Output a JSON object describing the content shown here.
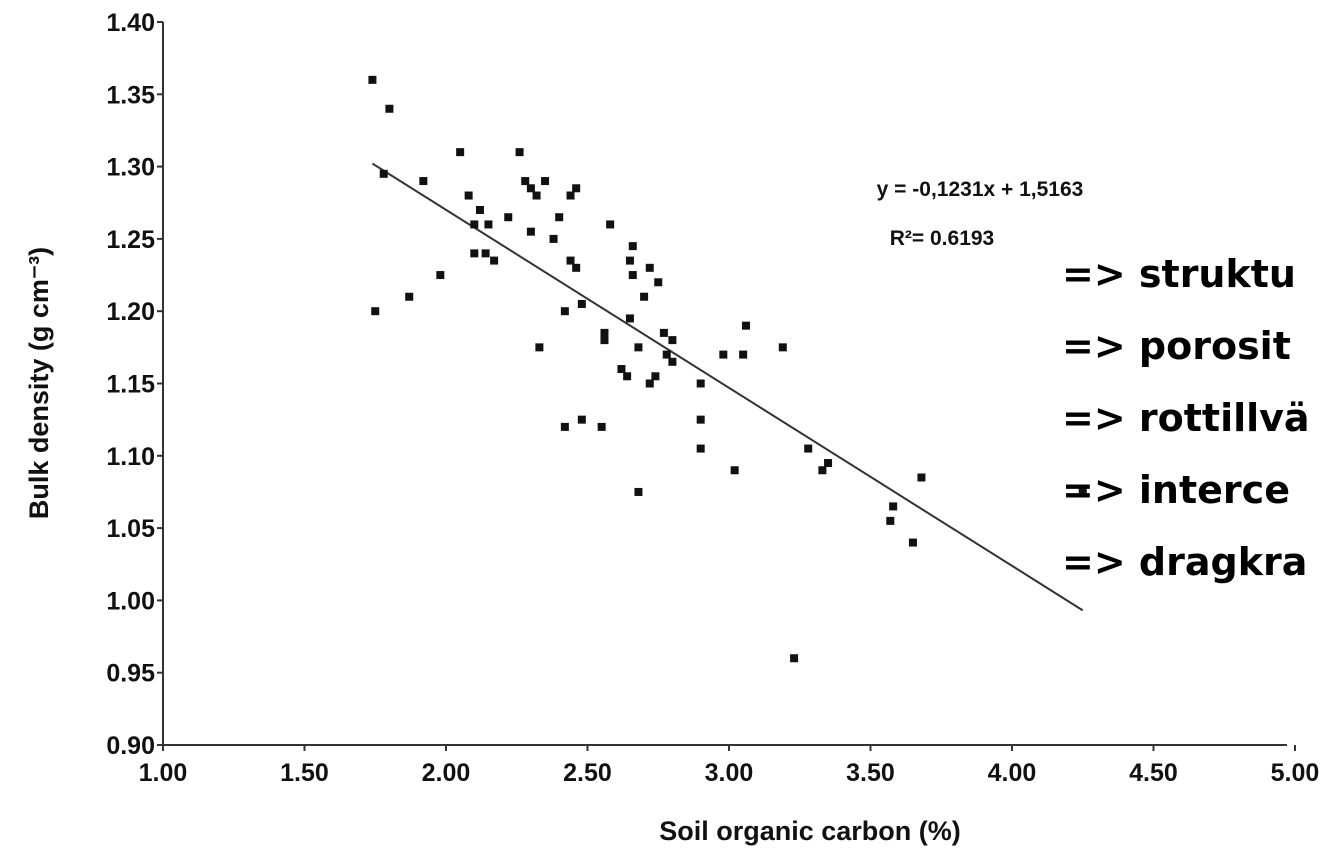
{
  "chart_data": {
    "type": "scatter",
    "x_label": "Soil organic carbon (%)",
    "y_label": "Bulk density (g cm⁻³)",
    "xlim": [
      1,
      5
    ],
    "ylim": [
      0.9,
      1.4
    ],
    "xticks": [
      {
        "value": 1,
        "label": "1.00"
      },
      {
        "value": 1.5,
        "label": "1.50"
      },
      {
        "value": 2,
        "label": "2.00"
      },
      {
        "value": 2.5,
        "label": "2.50"
      },
      {
        "value": 3,
        "label": "3.00"
      },
      {
        "value": 3.5,
        "label": "3.50"
      },
      {
        "value": 4,
        "label": "4.00"
      },
      {
        "value": 4.5,
        "label": "4.50"
      },
      {
        "value": 5,
        "label": "5.00"
      }
    ],
    "yticks": [
      {
        "value": 0.9,
        "label": "0.90"
      },
      {
        "value": 0.95,
        "label": "0.95"
      },
      {
        "value": 1,
        "label": "1.00"
      },
      {
        "value": 1.05,
        "label": "1.05"
      },
      {
        "value": 1.1,
        "label": "1.10"
      },
      {
        "value": 1.15,
        "label": "1.15"
      },
      {
        "value": 1.2,
        "label": "1.20"
      },
      {
        "value": 1.25,
        "label": "1.25"
      },
      {
        "value": 1.3,
        "label": "1.30"
      },
      {
        "value": 1.35,
        "label": "1.35"
      },
      {
        "value": 1.4,
        "label": "1.40"
      }
    ],
    "color": "#111111",
    "x": [
      1.74,
      1.8,
      1.78,
      1.75,
      1.87,
      1.92,
      1.98,
      2.05,
      2.08,
      2.1,
      2.12,
      2.1,
      2.14,
      2.15,
      2.17,
      2.22,
      2.26,
      2.28,
      2.3,
      2.32,
      2.35,
      2.3,
      2.38,
      2.4,
      2.44,
      2.46,
      2.44,
      2.46,
      2.42,
      2.33,
      2.48,
      2.56,
      2.56,
      2.58,
      2.42,
      2.48,
      2.55,
      2.62,
      2.64,
      2.65,
      2.66,
      2.66,
      2.65,
      2.68,
      2.7,
      2.72,
      2.74,
      2.72,
      2.75,
      2.77,
      2.8,
      2.78,
      2.8,
      2.68,
      2.9,
      2.9,
      2.9,
      2.98,
      3.05,
      3.06,
      3.02,
      3.19,
      3.28,
      3.33,
      3.35,
      3.57,
      3.58,
      3.65,
      3.68,
      3.23,
      4.25
    ],
    "values": [
      1.36,
      1.34,
      1.295,
      1.2,
      1.21,
      1.29,
      1.225,
      1.31,
      1.28,
      1.26,
      1.27,
      1.24,
      1.24,
      1.26,
      1.235,
      1.265,
      1.31,
      1.29,
      1.285,
      1.28,
      1.29,
      1.255,
      1.25,
      1.265,
      1.28,
      1.285,
      1.235,
      1.23,
      1.2,
      1.175,
      1.205,
      1.18,
      1.185,
      1.26,
      1.12,
      1.125,
      1.12,
      1.16,
      1.155,
      1.235,
      1.245,
      1.225,
      1.195,
      1.175,
      1.21,
      1.15,
      1.155,
      1.23,
      1.22,
      1.185,
      1.18,
      1.17,
      1.165,
      1.075,
      1.15,
      1.125,
      1.105,
      1.17,
      1.17,
      1.19,
      1.09,
      1.175,
      1.105,
      1.09,
      1.095,
      1.055,
      1.065,
      1.04,
      1.085,
      0.96,
      1.075
    ],
    "trendline": {
      "slope": -0.1231,
      "intercept": 1.5163,
      "label": "y = -0,1231x + 1,5163",
      "r2_label": "R²= 0.6193",
      "color": "#333333"
    },
    "side_notes": [
      "=> struktu",
      "=> porosit",
      "=> rottillvä",
      "=> interce",
      "=> dragkra"
    ]
  }
}
